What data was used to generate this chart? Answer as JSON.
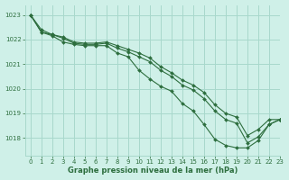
{
  "title": "Graphe pression niveau de la mer (hPa)",
  "bg_color": "#cff0e8",
  "grid_color": "#a8d8cc",
  "line_color": "#2d6e3e",
  "marker_color": "#2d6e3e",
  "xlim": [
    -0.5,
    23
  ],
  "ylim": [
    1017.3,
    1023.4
  ],
  "xticks": [
    0,
    1,
    2,
    3,
    4,
    5,
    6,
    7,
    8,
    9,
    10,
    11,
    12,
    13,
    14,
    15,
    16,
    17,
    18,
    19,
    20,
    21,
    22,
    23
  ],
  "yticks": [
    1018,
    1019,
    1020,
    1021,
    1022,
    1023
  ],
  "series": [
    [
      1023.0,
      1022.3,
      1022.2,
      1022.1,
      1021.9,
      1021.85,
      1021.85,
      1021.9,
      1021.75,
      1021.6,
      1021.45,
      1021.25,
      1020.9,
      1020.65,
      1020.35,
      1020.15,
      1019.85,
      1019.35,
      1019.0,
      1018.85,
      1018.1,
      1018.35,
      1018.75,
      1018.75
    ],
    [
      1023.0,
      1022.4,
      1022.2,
      1022.05,
      1021.85,
      1021.8,
      1021.8,
      1021.85,
      1021.65,
      1021.5,
      1021.3,
      1021.1,
      1020.75,
      1020.5,
      1020.15,
      1019.95,
      1019.6,
      1019.1,
      1018.75,
      1018.6,
      1017.8,
      1018.05,
      1018.55,
      1018.75
    ],
    [
      1023.0,
      1022.3,
      1022.15,
      1021.9,
      1021.8,
      1021.75,
      1021.75,
      1021.75,
      1021.45,
      1021.3,
      1020.75,
      1020.4,
      1020.1,
      1019.9,
      1019.4,
      1019.1,
      1018.55,
      1017.95,
      1017.7,
      1017.6,
      1017.6,
      1017.9,
      1018.55,
      1018.75
    ]
  ],
  "figsize": [
    3.2,
    2.0
  ],
  "dpi": 100,
  "title_fontsize": 6,
  "tick_fontsize": 5,
  "linewidth": 0.8,
  "markersize": 2.0
}
